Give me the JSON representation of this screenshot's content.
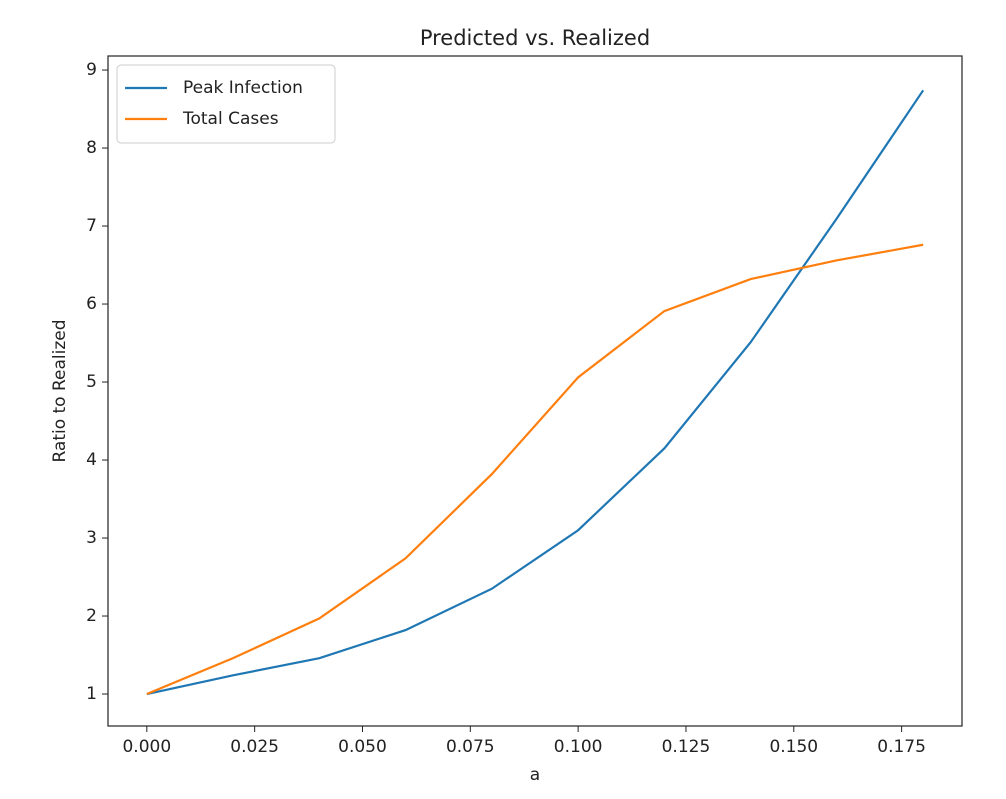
{
  "chart_data": {
    "type": "line",
    "title": "Predicted vs. Realized",
    "x_label": "a",
    "y_label": "Ratio to Realized",
    "x": [
      0,
      0.02,
      0.04,
      0.06,
      0.08,
      0.1,
      0.12,
      0.14,
      0.16,
      0.18
    ],
    "series": [
      {
        "name": "Peak Infection",
        "color": "#1f77b4",
        "values": [
          1.0,
          1.24,
          1.46,
          1.82,
          2.35,
          3.1,
          4.15,
          5.51,
          7.1,
          8.74
        ]
      },
      {
        "name": "Total Cases",
        "color": "#ff7f0e",
        "values": [
          1.0,
          1.46,
          1.97,
          2.74,
          3.82,
          5.06,
          5.91,
          6.32,
          6.56,
          6.76
        ]
      }
    ],
    "xlim": [
      -0.009,
      0.189
    ],
    "xticks": [
      {
        "value": 0,
        "label": "0.000"
      },
      {
        "value": 0.025,
        "label": "0.025"
      },
      {
        "value": 0.05,
        "label": "0.050"
      },
      {
        "value": 0.075,
        "label": "0.075"
      },
      {
        "value": 0.1,
        "label": "0.100"
      },
      {
        "value": 0.125,
        "label": "0.125"
      },
      {
        "value": 0.15,
        "label": "0.150"
      },
      {
        "value": 0.175,
        "label": "0.175"
      }
    ],
    "ylim": [
      0.59,
      9.18
    ],
    "yticks": [
      1,
      2,
      3,
      4,
      5,
      6,
      7,
      8,
      9
    ],
    "legend": "upper left",
    "grid": false
  }
}
